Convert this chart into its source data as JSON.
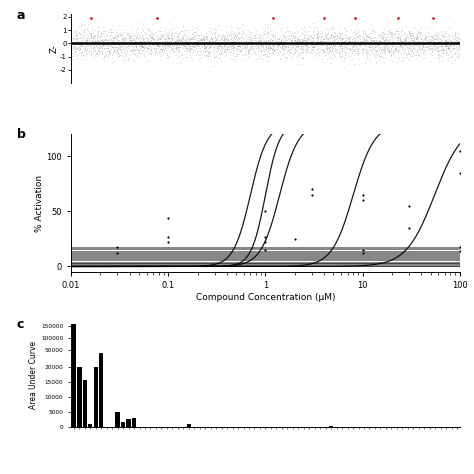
{
  "panel_a": {
    "n_points": 5000,
    "y_range": [
      -3,
      2.2
    ],
    "y_ticks": [
      -2,
      -1,
      0,
      1,
      2
    ],
    "ylabel": "Z-",
    "hline_y": 0,
    "red_points_x": [
      0.05,
      0.22,
      0.52,
      0.65,
      0.73,
      0.84,
      0.93
    ],
    "red_points_y": [
      1.9,
      1.95,
      1.9,
      1.95,
      1.9,
      1.95,
      1.9
    ]
  },
  "panel_b": {
    "xlabel": "Compound Concentration (μM)",
    "ylabel": "% Activation",
    "xmin": 0.01,
    "xmax": 100,
    "ymin": -5,
    "ymax": 120,
    "yticks": [
      0,
      50,
      100
    ],
    "sigmoid_ec50s": [
      0.7,
      1.0,
      1.4,
      8.0,
      55.0
    ],
    "sigmoid_hills": [
      5.0,
      6.0,
      4.5,
      4.0,
      3.0
    ],
    "sigmoid_tops": [
      130,
      130,
      130,
      130,
      130
    ],
    "flat_levels": [
      0.3,
      0.8,
      1.5,
      2.0,
      2.8,
      3.5,
      4.5,
      5.5,
      6.5,
      7.5,
      8.5,
      9.5,
      10.5,
      11.5,
      12.5,
      13.5,
      14.5,
      15.5,
      16.5,
      17.5
    ],
    "scatter_pts": [
      [
        0.03,
        18
      ],
      [
        0.03,
        12
      ],
      [
        0.1,
        44
      ],
      [
        0.1,
        27
      ],
      [
        0.1,
        22
      ],
      [
        1.0,
        50
      ],
      [
        1.0,
        27
      ],
      [
        1.0,
        22
      ],
      [
        1.0,
        15
      ],
      [
        3.0,
        70
      ],
      [
        3.0,
        65
      ],
      [
        2.0,
        25
      ],
      [
        10.0,
        65
      ],
      [
        10.0,
        60
      ],
      [
        10.0,
        15
      ],
      [
        10.0,
        12
      ],
      [
        30.0,
        55
      ],
      [
        30.0,
        35
      ],
      [
        100.0,
        105
      ],
      [
        100.0,
        85
      ],
      [
        100.0,
        18
      ],
      [
        100.0,
        14
      ]
    ]
  },
  "panel_c": {
    "ylabel": "Area Under Curve",
    "bar_values": [
      160000,
      20000,
      15700,
      1000,
      20000,
      45000,
      0,
      0,
      5000,
      1500,
      2500,
      3000,
      0,
      0,
      0,
      0,
      0,
      0,
      0,
      0,
      0,
      900,
      0,
      0,
      0,
      0,
      0,
      0,
      0,
      0,
      0,
      0,
      0,
      0,
      0,
      0,
      0,
      0,
      0,
      0,
      0,
      0,
      0,
      0,
      0,
      0,
      0,
      350,
      0,
      0,
      0,
      0,
      0,
      0,
      0,
      0,
      0,
      0,
      0,
      0,
      0,
      0,
      0,
      0,
      0,
      0,
      0,
      0,
      0,
      0,
      0
    ],
    "yticks_raw": [
      0,
      5000,
      10000,
      15000,
      20000,
      50000,
      100000,
      150000
    ],
    "ytick_labels": [
      "0",
      "5000",
      "10000",
      "15000",
      "20000",
      "50000",
      "100000",
      "150000"
    ],
    "bar_color": "#000000"
  }
}
